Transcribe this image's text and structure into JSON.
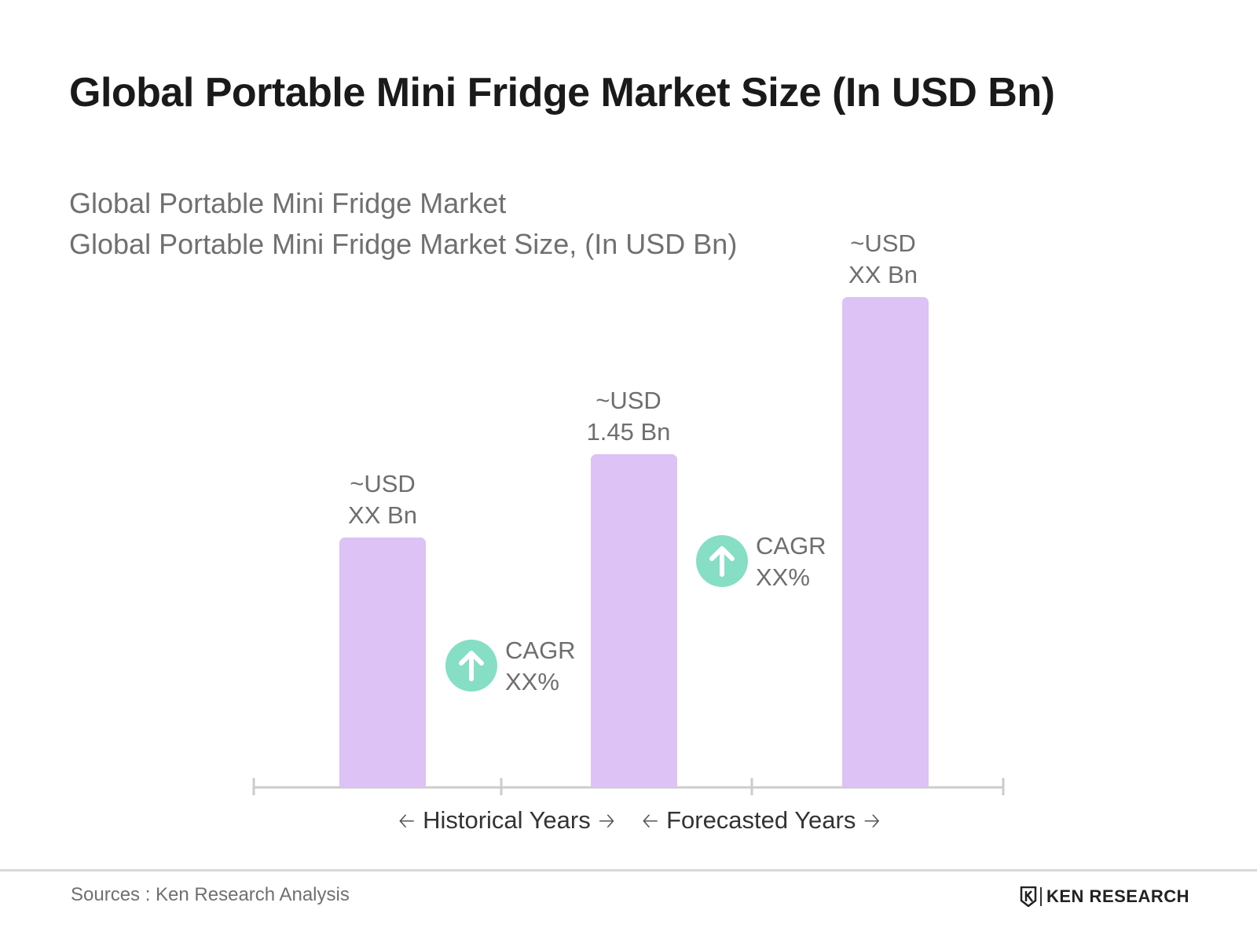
{
  "title": "Global Portable Mini Fridge Market Size (In USD Bn)",
  "subtitle_line1": "Global Portable Mini Fridge Market",
  "subtitle_line2": "Global Portable Mini Fridge Market Size, (In USD Bn)",
  "colors": {
    "bar": "#dcc2f5",
    "cagr_icon": "#86dec4",
    "axis": "#cccccc"
  },
  "chart_data": {
    "type": "bar",
    "title": "Global Portable Mini Fridge Market Size (In USD Bn)",
    "xlabel": "",
    "ylabel": "",
    "grid": false,
    "legend": "none",
    "bars": [
      {
        "label_line1": "~USD",
        "label_line2": "XX Bn",
        "relative_height": 0.51
      },
      {
        "label_line1": "~USD",
        "label_line2": "1.45 Bn",
        "value": 1.45,
        "relative_height": 0.68
      },
      {
        "label_line1": "~USD",
        "label_line2": "XX Bn",
        "relative_height": 1.0
      }
    ],
    "cagr_annotations": [
      {
        "line1": "CAGR",
        "line2": "XX%",
        "icon": "arrow-up-icon"
      },
      {
        "line1": "CAGR",
        "line2": "XX%",
        "icon": "arrow-up-icon"
      }
    ],
    "periods": [
      {
        "label": "Historical Years"
      },
      {
        "label": "Forecasted Years"
      }
    ]
  },
  "footer": {
    "sources": "Sources : Ken Research Analysis",
    "brand": "KEN RESEARCH"
  }
}
